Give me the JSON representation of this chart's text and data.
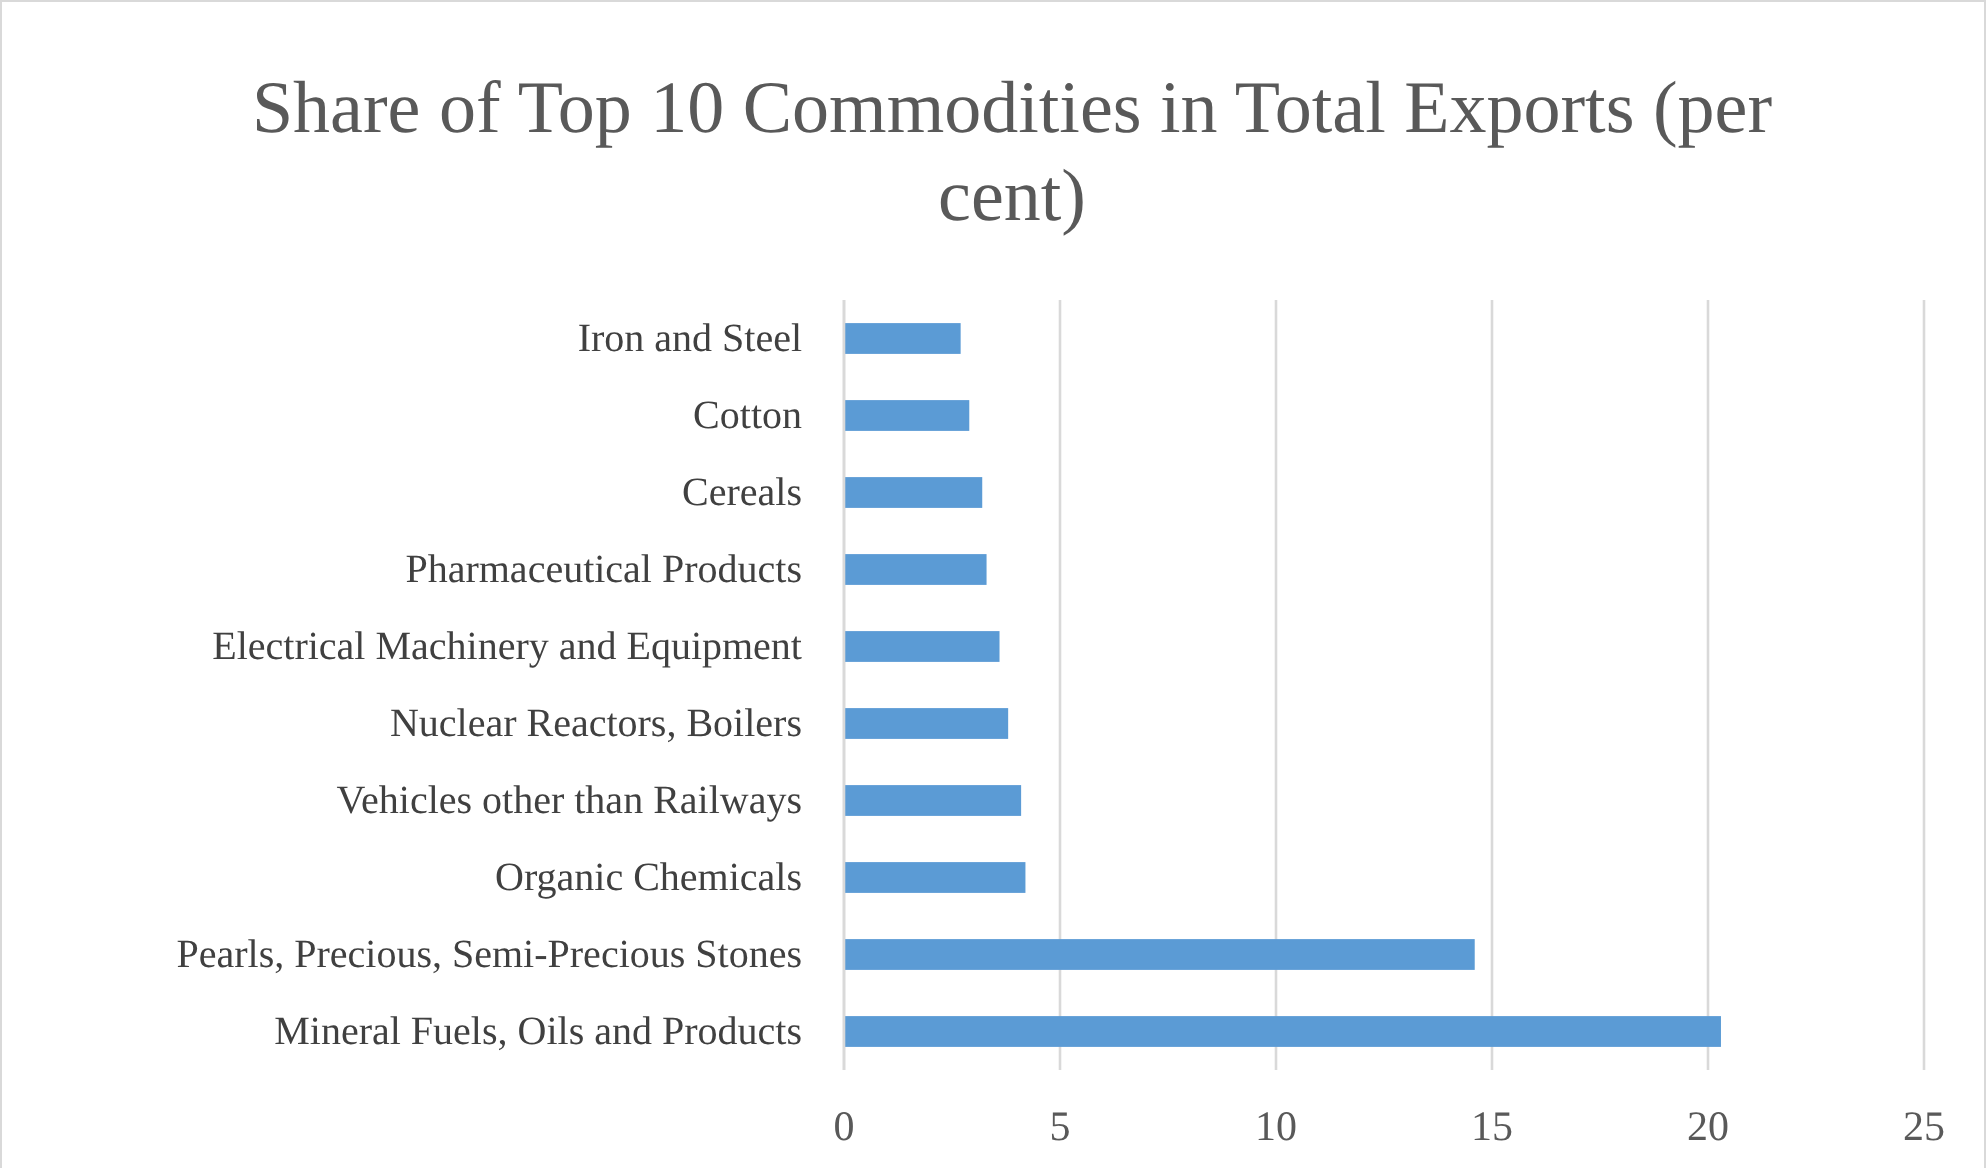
{
  "chart_data": {
    "type": "bar",
    "orientation": "horizontal",
    "title": "Share of Top 10 Commodities in Total Exports (per cent)",
    "categories": [
      "Iron and Steel",
      "Cotton",
      "Cereals",
      "Pharmaceutical Products",
      "Electrical Machinery and Equipment",
      "Nuclear Reactors, Boilers",
      "Vehicles other than Railways",
      "Organic Chemicals",
      "Pearls, Precious, Semi-Precious Stones",
      "Mineral Fuels, Oils and Products"
    ],
    "values": [
      2.7,
      2.9,
      3.2,
      3.3,
      3.6,
      3.8,
      4.1,
      4.2,
      14.6,
      20.3
    ],
    "color": "#5b9bd5",
    "xlim": [
      0,
      25
    ],
    "xticks": [
      0,
      5,
      10,
      15,
      20,
      25
    ],
    "grid": "x"
  }
}
